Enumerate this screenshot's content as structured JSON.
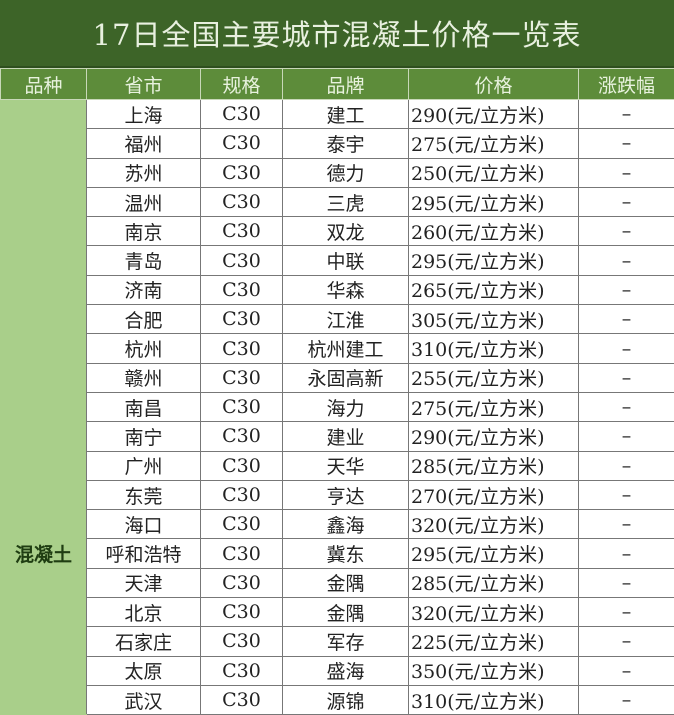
{
  "title": "17日全国主要城市混凝土价格一览表",
  "headers": [
    "品种",
    "省市",
    "规格",
    "品牌",
    "价格",
    "涨跌幅"
  ],
  "category": "混凝土",
  "rows": [
    [
      "上海",
      "C30",
      "建工",
      "290(元/立方米)",
      "–"
    ],
    [
      "福州",
      "C30",
      "泰宇",
      "275(元/立方米)",
      "–"
    ],
    [
      "苏州",
      "C30",
      "德力",
      "250(元/立方米)",
      "–"
    ],
    [
      "温州",
      "C30",
      "三虎",
      "295(元/立方米)",
      "–"
    ],
    [
      "南京",
      "C30",
      "双龙",
      "260(元/立方米)",
      "–"
    ],
    [
      "青岛",
      "C30",
      "中联",
      "295(元/立方米)",
      "–"
    ],
    [
      "济南",
      "C30",
      "华森",
      "265(元/立方米)",
      "–"
    ],
    [
      "合肥",
      "C30",
      "江淮",
      "305(元/立方米)",
      "–"
    ],
    [
      "杭州",
      "C30",
      "杭州建工",
      "310(元/立方米)",
      "–"
    ],
    [
      "赣州",
      "C30",
      "永固高新",
      "255(元/立方米)",
      "–"
    ],
    [
      "南昌",
      "C30",
      "海力",
      "275(元/立方米)",
      "–"
    ],
    [
      "南宁",
      "C30",
      "建业",
      "290(元/立方米)",
      "–"
    ],
    [
      "广州",
      "C30",
      "天华",
      "285(元/立方米)",
      "–"
    ],
    [
      "东莞",
      "C30",
      "亨达",
      "270(元/立方米)",
      "–"
    ],
    [
      "海口",
      "C30",
      "鑫海",
      "320(元/立方米)",
      "–"
    ],
    [
      "呼和浩特",
      "C30",
      "冀东",
      "295(元/立方米)",
      "–"
    ],
    [
      "天津",
      "C30",
      "金隅",
      "285(元/立方米)",
      "–"
    ],
    [
      "北京",
      "C30",
      "金隅",
      "320(元/立方米)",
      "–"
    ],
    [
      "石家庄",
      "C30",
      "军存",
      "225(元/立方米)",
      "–"
    ],
    [
      "太原",
      "C30",
      "盛海",
      "350(元/立方米)",
      "–"
    ],
    [
      "武汉",
      "C30",
      "源锦",
      "310(元/立方米)",
      "–"
    ]
  ]
}
